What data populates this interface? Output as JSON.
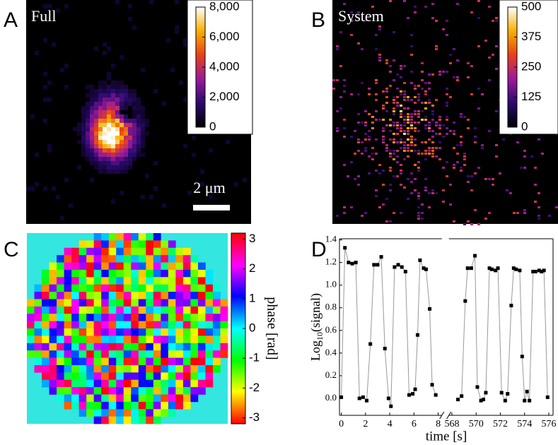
{
  "chart_data": [
    {
      "type": "image",
      "letter": "A",
      "label": "Full",
      "scale_label": "2 μm",
      "colorbar": {
        "lim": [
          0,
          8000
        ],
        "ticks": [
          0,
          {
            "value": 2000,
            "label": "2,000"
          },
          {
            "value": 4000,
            "label": "4,000"
          },
          {
            "value": 6000,
            "label": "6,000"
          },
          {
            "value": 8000,
            "label": "8,000"
          }
        ]
      }
    },
    {
      "type": "sparse_image",
      "letter": "B",
      "label": "System",
      "colorbar": {
        "lim": [
          0,
          500
        ],
        "ticks": [
          0,
          125,
          250,
          375,
          500
        ]
      }
    },
    {
      "type": "phase_map",
      "letter": "C",
      "colorbar_label": "phase [rad]",
      "colorbar": {
        "lim": [
          -3.2,
          3.2
        ],
        "ticks": [
          3,
          2,
          1,
          0,
          -1,
          -2,
          -3
        ]
      }
    },
    {
      "type": "line",
      "letter": "D",
      "xlabel": "time [s]",
      "ylabel": [
        "Log",
        "10",
        "(signal)"
      ],
      "xlim": [
        [
          -0.15,
          8.3
        ],
        [
          567.75,
          576.35
        ]
      ],
      "xticks": [
        0,
        2,
        4,
        6,
        8,
        568,
        570,
        572,
        574,
        576
      ],
      "ylim": [
        -0.15,
        1.41
      ],
      "yticks": [
        {
          "value": 0,
          "label": "0.0"
        },
        0.2,
        0.4,
        0.6,
        0.8,
        {
          "value": 1,
          "label": "1.0"
        },
        1.2,
        1.4
      ],
      "color": "#000000",
      "x": [
        0.0,
        0.3,
        0.6,
        0.9,
        1.2,
        1.5,
        1.8,
        2.1,
        2.4,
        2.7,
        3.0,
        3.3,
        3.6,
        3.9,
        4.1,
        4.4,
        4.7,
        5.0,
        5.3,
        5.6,
        5.9,
        6.1,
        6.3,
        6.5,
        6.8,
        7.0,
        7.3,
        7.5,
        7.8,
        568.5,
        568.8,
        569.1,
        569.3,
        569.6,
        569.9,
        570.1,
        570.4,
        570.6,
        570.8,
        571.1,
        571.3,
        571.6,
        571.8,
        572.1,
        572.4,
        572.6,
        572.9,
        573.1,
        573.3,
        573.6,
        573.8,
        574.0,
        574.2,
        574.4,
        574.7,
        574.9,
        575.2,
        575.4,
        575.6,
        575.9
      ],
      "values": [
        0.01,
        1.33,
        1.2,
        1.19,
        1.2,
        0.0,
        0.01,
        -0.02,
        0.48,
        1.18,
        1.18,
        1.25,
        0.44,
        0.0,
        -0.07,
        1.16,
        1.18,
        1.16,
        1.12,
        0.03,
        0.04,
        0.08,
        0.56,
        1.22,
        1.15,
        1.14,
        0.79,
        0.12,
        0.03,
        -0.01,
        0.02,
        0.86,
        1.15,
        1.15,
        1.26,
        0.1,
        -0.02,
        -0.01,
        0.05,
        1.15,
        1.14,
        1.13,
        1.15,
        0.05,
        -0.02,
        0.04,
        0.82,
        1.15,
        1.14,
        1.13,
        0.37,
        -0.02,
        0.06,
        -0.02,
        1.12,
        1.12,
        1.13,
        1.12,
        1.13,
        0.01
      ]
    }
  ]
}
